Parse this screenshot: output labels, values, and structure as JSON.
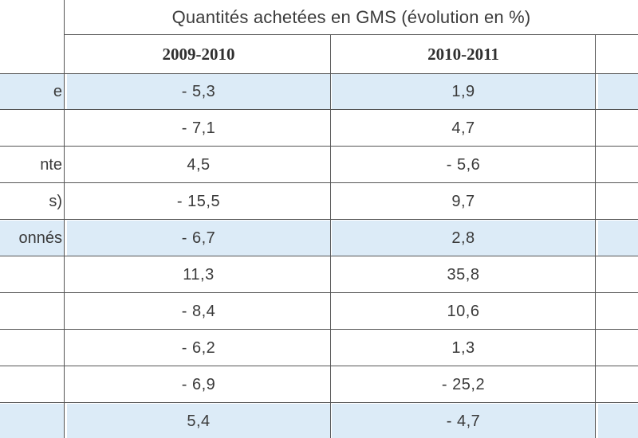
{
  "table": {
    "title": "Quantités achetées en GMS (évolution en %)",
    "columns": [
      "2009-2010",
      "2010-2011"
    ],
    "rows": [
      {
        "label": "e",
        "v1": "- 5,3",
        "v2": "1,9",
        "highlight": true
      },
      {
        "label": "",
        "v1": "- 7,1",
        "v2": "4,7",
        "highlight": false
      },
      {
        "label": "nte",
        "v1": "4,5",
        "v2": "- 5,6",
        "highlight": false
      },
      {
        "label": "s)",
        "v1": "- 15,5",
        "v2": "9,7",
        "highlight": false
      },
      {
        "label": "onnés",
        "v1": "- 6,7",
        "v2": "2,8",
        "highlight": true
      },
      {
        "label": "",
        "v1": "11,3",
        "v2": "35,8",
        "highlight": false
      },
      {
        "label": "",
        "v1": "- 8,4",
        "v2": "10,6",
        "highlight": false
      },
      {
        "label": "",
        "v1": "- 6,2",
        "v2": "1,3",
        "highlight": false
      },
      {
        "label": "",
        "v1": "- 6,9",
        "v2": "- 25,2",
        "highlight": false
      },
      {
        "label": "",
        "v1": "5,4",
        "v2": "- 4,7",
        "highlight": true
      }
    ]
  },
  "colors": {
    "highlight": "#dcebf7",
    "rule": "#555555"
  }
}
